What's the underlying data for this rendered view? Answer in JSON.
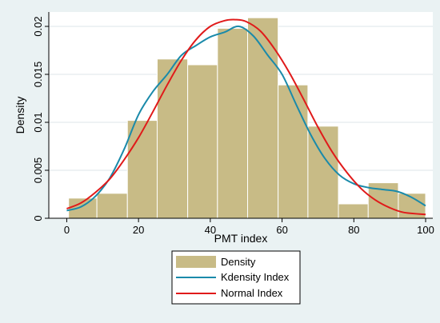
{
  "chart_data": {
    "type": "bar",
    "xlabel": "PMT index",
    "ylabel": "Density",
    "xlim": [
      -5,
      102
    ],
    "ylim": [
      0,
      0.0215
    ],
    "grid": true,
    "legend_position": "bottom",
    "x_ticks": [
      0,
      20,
      40,
      60,
      80,
      100
    ],
    "x_tick_labels": [
      "0",
      "20",
      "40",
      "60",
      "80",
      "100"
    ],
    "y_ticks": [
      0,
      0.005,
      0.01,
      0.015,
      0.02
    ],
    "y_tick_labels": [
      "0",
      "0.005",
      "0.01",
      "0.015",
      "0.02"
    ],
    "histogram": {
      "name": "Density",
      "color": "#c8bb86",
      "bins": [
        {
          "x0": 0.5,
          "x1": 8.4,
          "value": 0.0021
        },
        {
          "x0": 8.4,
          "x1": 16.9,
          "value": 0.0026
        },
        {
          "x0": 16.9,
          "x1": 25.2,
          "value": 0.0102
        },
        {
          "x0": 25.2,
          "x1": 33.7,
          "value": 0.0166
        },
        {
          "x0": 33.7,
          "x1": 42.0,
          "value": 0.016
        },
        {
          "x0": 42.0,
          "x1": 50.4,
          "value": 0.0198
        },
        {
          "x0": 50.4,
          "x1": 58.9,
          "value": 0.0209
        },
        {
          "x0": 58.9,
          "x1": 67.2,
          "value": 0.0139
        },
        {
          "x0": 67.2,
          "x1": 75.7,
          "value": 0.0096
        },
        {
          "x0": 75.7,
          "x1": 84.0,
          "value": 0.0015
        },
        {
          "x0": 84.0,
          "x1": 92.4,
          "value": 0.0037
        },
        {
          "x0": 92.4,
          "x1": 100.0,
          "value": 0.0026
        }
      ]
    },
    "series": [
      {
        "name": "Kdensity Index",
        "color": "#1a8aaa",
        "x": [
          0,
          4,
          8,
          12,
          16,
          20,
          24,
          28,
          32,
          36,
          40,
          44,
          48,
          52,
          56,
          60,
          64,
          68,
          72,
          76,
          80,
          84,
          88,
          92,
          96,
          100
        ],
        "y": [
          0.0008,
          0.0012,
          0.0023,
          0.0042,
          0.0072,
          0.0108,
          0.0132,
          0.015,
          0.017,
          0.018,
          0.0189,
          0.0194,
          0.02,
          0.019,
          0.017,
          0.015,
          0.0118,
          0.0087,
          0.0062,
          0.0045,
          0.0036,
          0.0032,
          0.003,
          0.0028,
          0.0022,
          0.0013
        ]
      },
      {
        "name": "Normal Index",
        "color": "#e01a1a",
        "x": [
          0,
          4,
          8,
          12,
          16,
          20,
          24,
          28,
          32,
          36,
          40,
          44,
          47,
          50,
          54,
          58,
          62,
          66,
          70,
          74,
          78,
          82,
          86,
          90,
          94,
          100
        ],
        "y": [
          0.001,
          0.0016,
          0.0027,
          0.0041,
          0.0061,
          0.0084,
          0.0111,
          0.0139,
          0.0165,
          0.0186,
          0.02,
          0.0206,
          0.0207,
          0.0205,
          0.0195,
          0.0176,
          0.0152,
          0.0124,
          0.0095,
          0.0069,
          0.0048,
          0.0031,
          0.0019,
          0.0011,
          0.0006,
          0.0004
        ]
      }
    ]
  }
}
